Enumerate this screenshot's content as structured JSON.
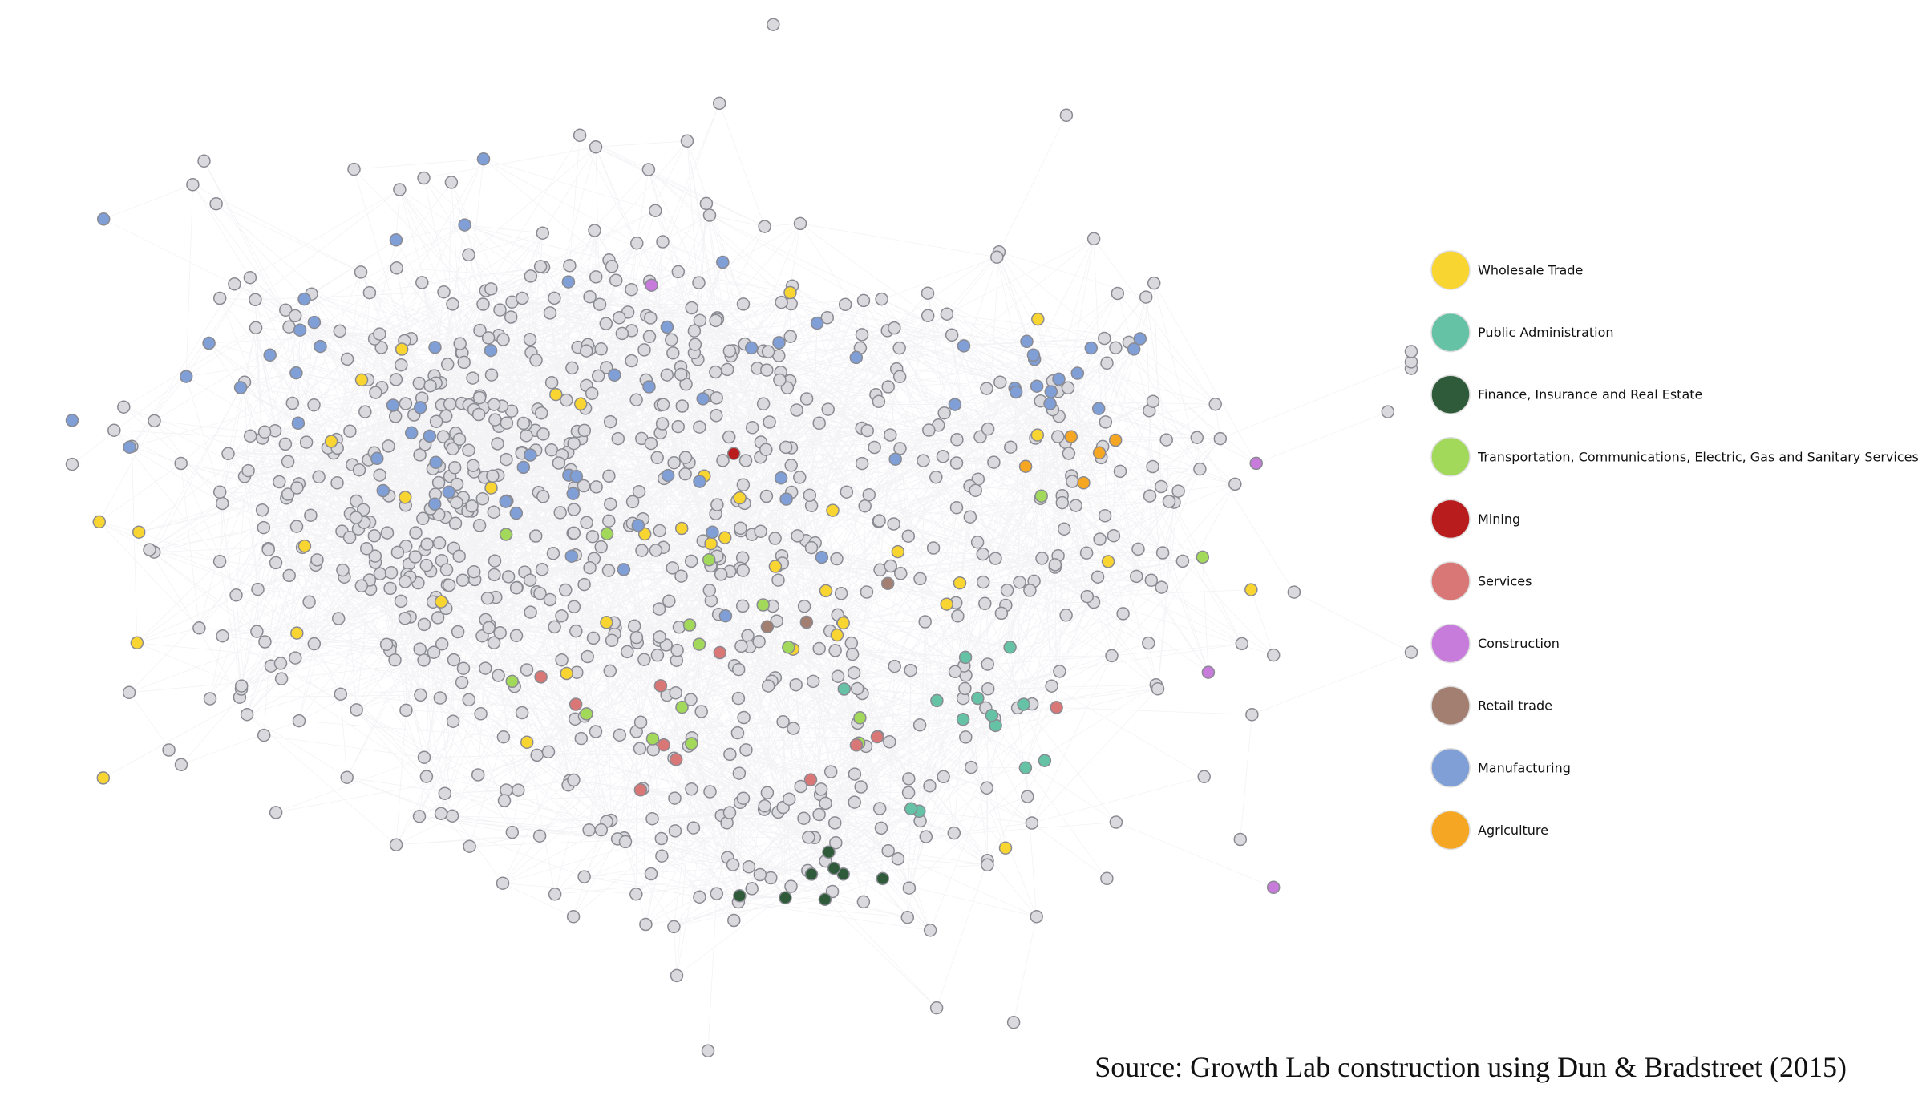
{
  "legend": {
    "items": [
      {
        "label": "Wholesale Trade",
        "color": "#f9d531"
      },
      {
        "label": "Public Administration",
        "color": "#66c2a5"
      },
      {
        "label": "Finance, Insurance and Real Estate",
        "color": "#2f5b3a"
      },
      {
        "label": "Transportation, Communications, Electric, Gas and Sanitary Services",
        "color": "#a3d95a"
      },
      {
        "label": "Mining",
        "color": "#b81c1c"
      },
      {
        "label": "Services",
        "color": "#d97777"
      },
      {
        "label": "Construction",
        "color": "#c77bdb"
      },
      {
        "label": "Retail trade",
        "color": "#a37f72"
      },
      {
        "label": "Manufacturing",
        "color": "#7f9fd6"
      },
      {
        "label": "Agriculture",
        "color": "#f5a623"
      }
    ]
  },
  "source": "Source: Growth Lab construction using Dun & Bradstreet (2015)"
}
